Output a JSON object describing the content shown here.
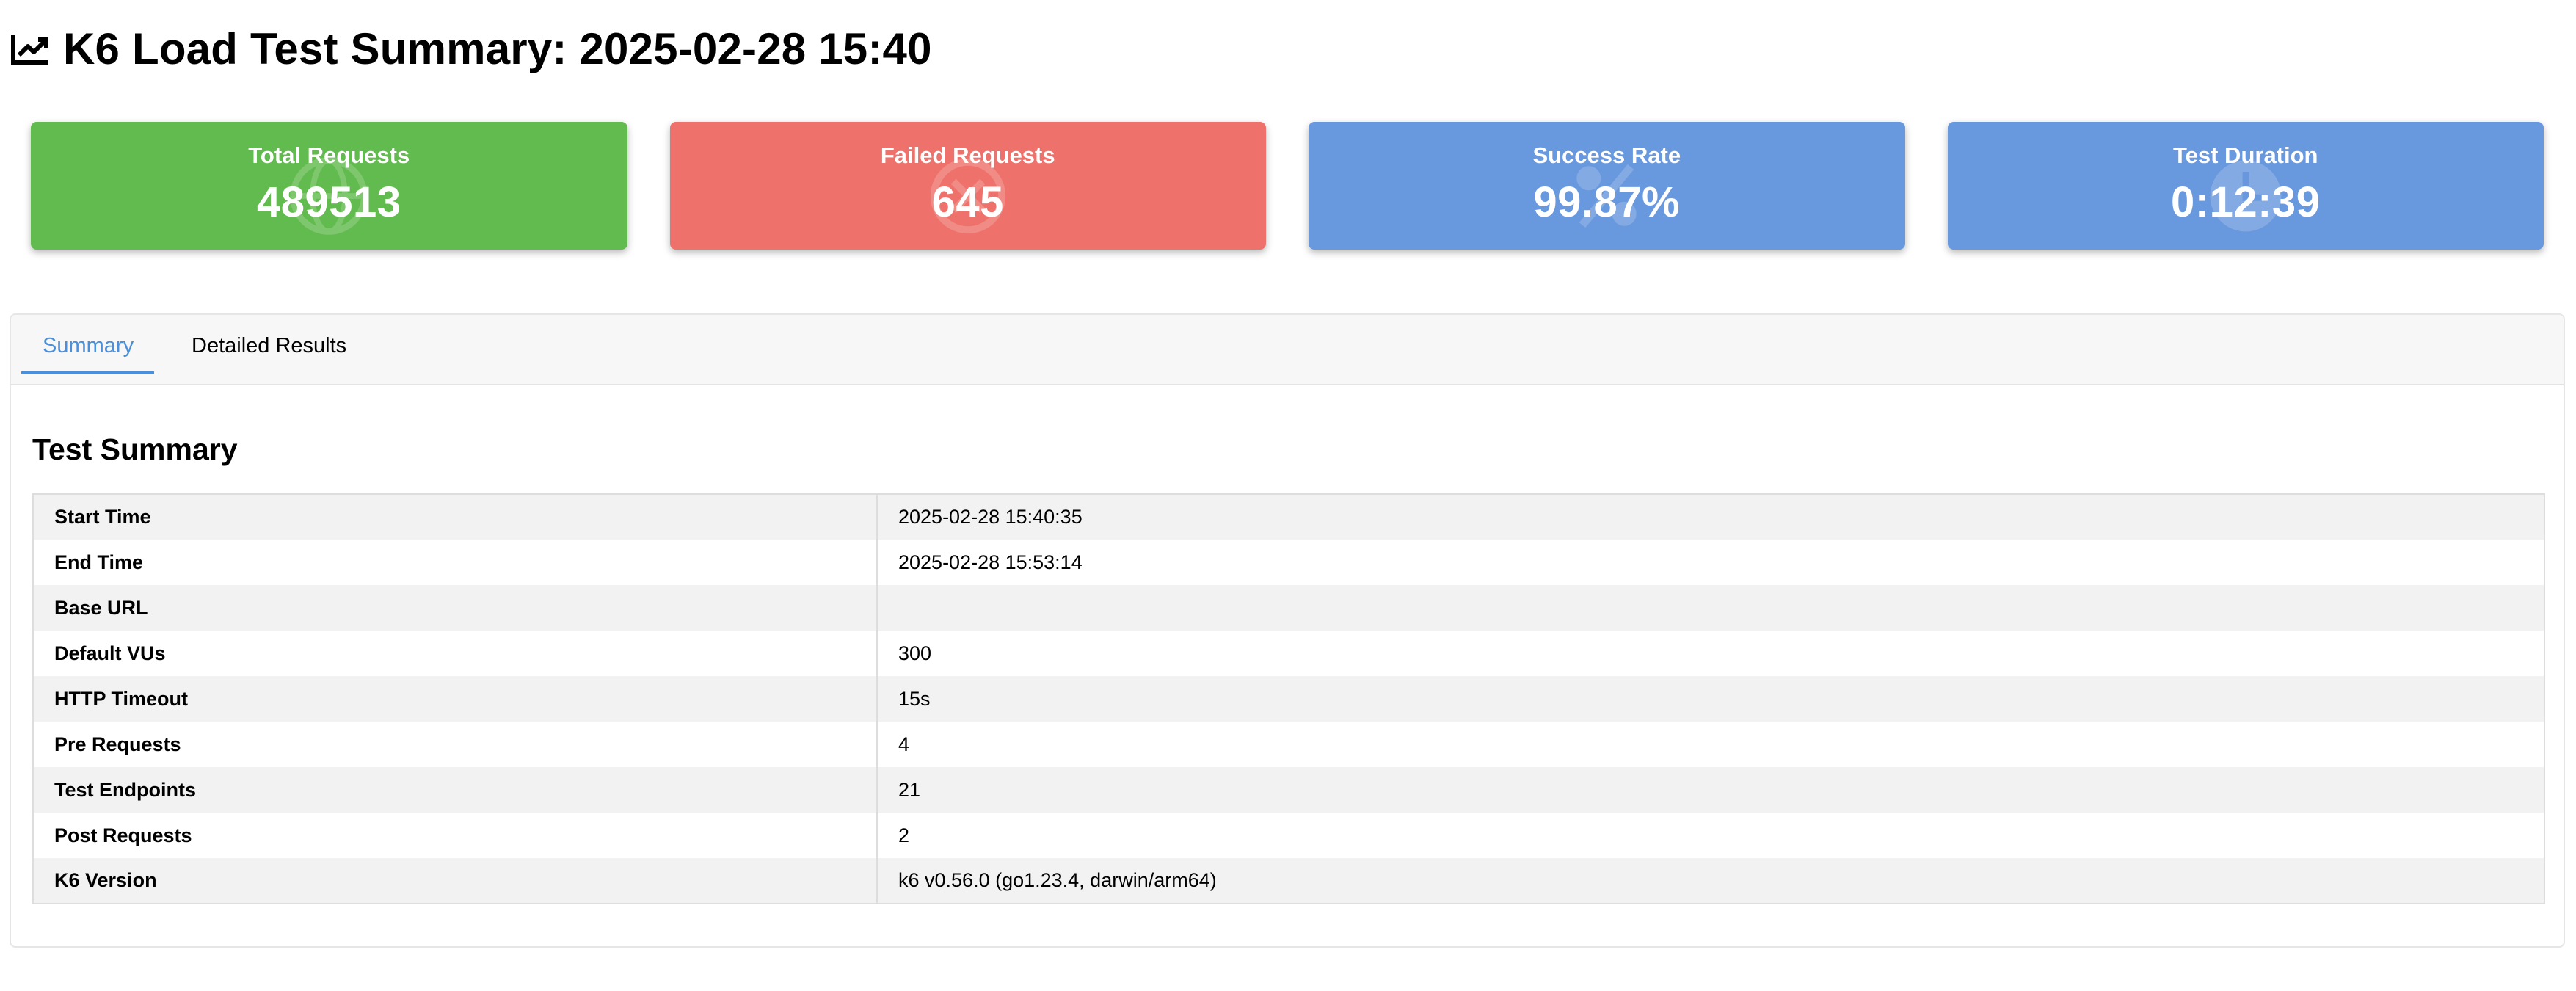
{
  "header": {
    "title": "K6 Load Test Summary: 2025-02-28 15:40",
    "icon": "line-chart-icon"
  },
  "cards": [
    {
      "label": "Total Requests",
      "value": "489513",
      "color": "#62bb4e",
      "icon": "globe-icon"
    },
    {
      "label": "Failed Requests",
      "value": "645",
      "color": "#ee726b",
      "icon": "circle-x-icon"
    },
    {
      "label": "Success Rate",
      "value": "99.87%",
      "color": "#6898dd",
      "icon": "percent-icon"
    },
    {
      "label": "Test Duration",
      "value": "0:12:39",
      "color": "#6898dd",
      "icon": "clock-icon"
    }
  ],
  "tabs": {
    "summary": "Summary",
    "details": "Detailed Results",
    "active": "summary",
    "active_color": "#4a8fd9"
  },
  "summary": {
    "title": "Test Summary",
    "rows": [
      {
        "key": "Start Time",
        "value": "2025-02-28 15:40:35"
      },
      {
        "key": "End Time",
        "value": "2025-02-28 15:53:14"
      },
      {
        "key": "Base URL",
        "value": ""
      },
      {
        "key": "Default VUs",
        "value": "300"
      },
      {
        "key": "HTTP Timeout",
        "value": "15s"
      },
      {
        "key": "Pre Requests",
        "value": "4"
      },
      {
        "key": "Test Endpoints",
        "value": "21"
      },
      {
        "key": "Post Requests",
        "value": "2"
      },
      {
        "key": "K6 Version",
        "value": "k6 v0.56.0 (go1.23.4, darwin/arm64)"
      }
    ]
  }
}
